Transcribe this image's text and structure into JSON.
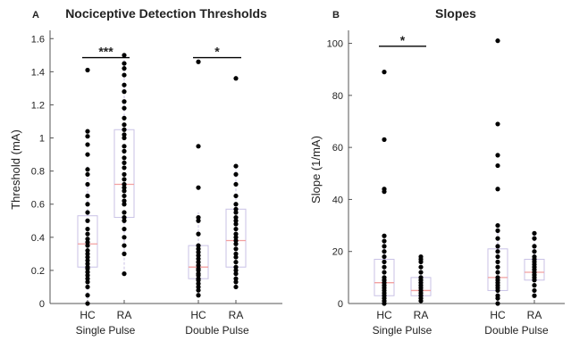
{
  "chart_data": [
    {
      "type": "scatter",
      "panel_letter": "A",
      "title": "Nociceptive Detection Thresholds",
      "ylabel": "Threshold (mA)",
      "xlabel": "",
      "ylim": [
        0,
        1.65
      ],
      "yticks": [
        0,
        0.2,
        0.4,
        0.6,
        0.8,
        1,
        1.2,
        1.4,
        1.6
      ],
      "grid": false,
      "categories": [
        "HC",
        "RA",
        "HC",
        "RA"
      ],
      "groups": [
        {
          "label": "Single Pulse",
          "categories": [
            0,
            1
          ]
        },
        {
          "label": "Double Pulse",
          "categories": [
            2,
            3
          ]
        }
      ],
      "boxes": [
        {
          "category": 0,
          "q1": 0.22,
          "median": 0.36,
          "q3": 0.53,
          "whisker_low": 0.0,
          "whisker_high": 0.83
        },
        {
          "category": 1,
          "q1": 0.52,
          "median": 0.72,
          "q3": 1.05,
          "whisker_low": 0.18,
          "whisker_high": 1.5
        },
        {
          "category": 2,
          "q1": 0.15,
          "median": 0.22,
          "q3": 0.35,
          "whisker_low": 0.05,
          "whisker_high": 0.55
        },
        {
          "category": 3,
          "q1": 0.22,
          "median": 0.38,
          "q3": 0.57,
          "whisker_low": 0.1,
          "whisker_high": 0.83
        }
      ],
      "points": [
        [
          0.0,
          0.05,
          0.1,
          0.13,
          0.15,
          0.17,
          0.19,
          0.21,
          0.22,
          0.24,
          0.26,
          0.28,
          0.3,
          0.32,
          0.35,
          0.37,
          0.39,
          0.42,
          0.45,
          0.5,
          0.55,
          0.6,
          0.65,
          0.72,
          0.78,
          0.81,
          0.9,
          0.96,
          1.01,
          1.04,
          1.41
        ],
        [
          0.18,
          0.3,
          0.35,
          0.4,
          0.45,
          0.5,
          0.52,
          0.55,
          0.6,
          0.62,
          0.65,
          0.68,
          0.7,
          0.72,
          0.75,
          0.78,
          0.82,
          0.85,
          0.88,
          0.92,
          0.95,
          1.0,
          1.02,
          1.05,
          1.08,
          1.12,
          1.18,
          1.22,
          1.28,
          1.32,
          1.38,
          1.42,
          1.45,
          1.5
        ],
        [
          0.05,
          0.08,
          0.1,
          0.12,
          0.14,
          0.15,
          0.17,
          0.18,
          0.2,
          0.21,
          0.23,
          0.25,
          0.27,
          0.29,
          0.31,
          0.33,
          0.35,
          0.42,
          0.5,
          0.52,
          0.7,
          0.95,
          1.46
        ],
        [
          0.1,
          0.13,
          0.15,
          0.18,
          0.2,
          0.22,
          0.25,
          0.28,
          0.3,
          0.33,
          0.36,
          0.38,
          0.4,
          0.42,
          0.45,
          0.48,
          0.5,
          0.52,
          0.55,
          0.57,
          0.6,
          0.65,
          0.72,
          0.78,
          0.83,
          1.36
        ]
      ],
      "significance": [
        {
          "from": 0,
          "to": 1,
          "label": "***",
          "y": 1.55
        },
        {
          "from": 2,
          "to": 3,
          "label": "*",
          "y": 1.55
        }
      ],
      "colors": {
        "box": "#c9c2e6",
        "median": "#f2a0a0",
        "point": "#000000",
        "axis": "#555555"
      }
    },
    {
      "type": "scatter",
      "panel_letter": "B",
      "title": "Slopes",
      "ylabel": "Slope (1/mA)",
      "xlabel": "",
      "ylim": [
        0,
        105
      ],
      "yticks": [
        0,
        20,
        40,
        60,
        80,
        100
      ],
      "grid": false,
      "categories": [
        "HC",
        "RA",
        "HC",
        "RA"
      ],
      "groups": [
        {
          "label": "Single Pulse",
          "categories": [
            0,
            1
          ]
        },
        {
          "label": "Double Pulse",
          "categories": [
            2,
            3
          ]
        }
      ],
      "boxes": [
        {
          "category": 0,
          "q1": 3,
          "median": 8,
          "q3": 17,
          "whisker_low": 0,
          "whisker_high": 26
        },
        {
          "category": 1,
          "q1": 3,
          "median": 5,
          "q3": 10,
          "whisker_low": 1,
          "whisker_high": 18
        },
        {
          "category": 2,
          "q1": 5,
          "median": 10,
          "q3": 21,
          "whisker_low": 0,
          "whisker_high": 30
        },
        {
          "category": 3,
          "q1": 9,
          "median": 12,
          "q3": 17,
          "whisker_low": 3,
          "whisker_high": 27
        }
      ],
      "points": [
        [
          0,
          1,
          2,
          3,
          4,
          5,
          6,
          7,
          8,
          9,
          10,
          12,
          14,
          16,
          18,
          20,
          22,
          24,
          26,
          43,
          44,
          63,
          89
        ],
        [
          1,
          2,
          3,
          4,
          5,
          6,
          7,
          8,
          9,
          10,
          12,
          14,
          16,
          17,
          18
        ],
        [
          0,
          2,
          3,
          5,
          6,
          7,
          8,
          9,
          10,
          12,
          14,
          16,
          18,
          20,
          22,
          25,
          28,
          30,
          44,
          53,
          57,
          69,
          101
        ],
        [
          3,
          5,
          7,
          9,
          10,
          11,
          12,
          13,
          14,
          15,
          16,
          17,
          18,
          20,
          22,
          25,
          27
        ]
      ],
      "significance": [
        {
          "from": 0,
          "to": 1,
          "label": "*",
          "y": 103
        }
      ],
      "colors": {
        "box": "#c9c2e6",
        "median": "#f2a0a0",
        "point": "#000000",
        "axis": "#555555"
      }
    }
  ]
}
